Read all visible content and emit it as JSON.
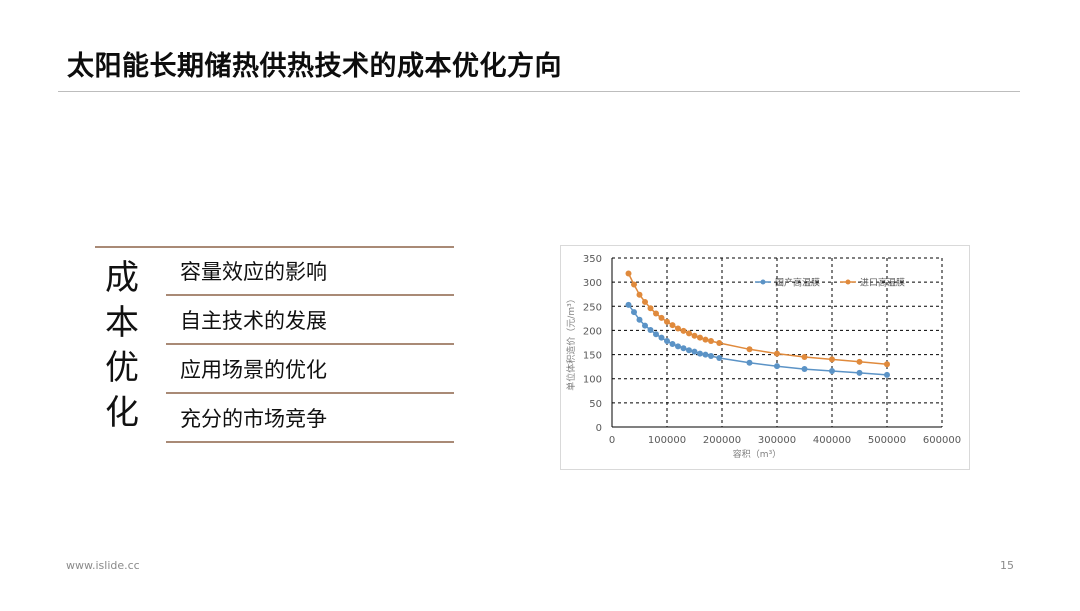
{
  "slide": {
    "title": "太阳能长期储热供热技术的成本优化方向",
    "side_label": "成本优化",
    "items": [
      "容量效应的影响",
      "自主技术的发展",
      "应用场景的优化",
      "充分的市场竞争"
    ],
    "footer_site": "www.islide.cc",
    "page_number": "15"
  },
  "colors": {
    "rule": "#a98a76",
    "series_domestic": "#5b93c6",
    "series_imported": "#e08a3c"
  },
  "chart_data": {
    "type": "scatter",
    "xlabel": "容积（m³）",
    "ylabel": "单位体积造价（元/m³）",
    "xlim": [
      0,
      600000
    ],
    "ylim": [
      0,
      350
    ],
    "xticks": [
      "0",
      "100000",
      "200000",
      "300000",
      "400000",
      "500000",
      "600000"
    ],
    "yticks": [
      "0",
      "50",
      "100",
      "150",
      "200",
      "250",
      "300",
      "350"
    ],
    "grid": true,
    "legend_position": "top-right",
    "series": [
      {
        "name": "国产高温膜",
        "color": "#5b93c6",
        "points": [
          [
            30000,
            253
          ],
          [
            40000,
            238
          ],
          [
            50000,
            222
          ],
          [
            60000,
            210
          ],
          [
            70000,
            201
          ],
          [
            80000,
            192
          ],
          [
            90000,
            185
          ],
          [
            100000,
            178
          ],
          [
            110000,
            172
          ],
          [
            120000,
            167
          ],
          [
            130000,
            163
          ],
          [
            140000,
            159
          ],
          [
            150000,
            156
          ],
          [
            160000,
            152
          ],
          [
            170000,
            150
          ],
          [
            180000,
            147
          ],
          [
            195000,
            143
          ],
          [
            250000,
            133
          ],
          [
            300000,
            126
          ],
          [
            350000,
            120
          ],
          [
            400000,
            116
          ],
          [
            450000,
            112
          ],
          [
            500000,
            108
          ]
        ]
      },
      {
        "name": "进口高温膜",
        "color": "#e08a3c",
        "points": [
          [
            30000,
            318
          ],
          [
            40000,
            295
          ],
          [
            50000,
            274
          ],
          [
            60000,
            259
          ],
          [
            70000,
            246
          ],
          [
            80000,
            235
          ],
          [
            90000,
            226
          ],
          [
            100000,
            218
          ],
          [
            110000,
            211
          ],
          [
            120000,
            204
          ],
          [
            130000,
            199
          ],
          [
            140000,
            194
          ],
          [
            150000,
            189
          ],
          [
            160000,
            185
          ],
          [
            170000,
            181
          ],
          [
            180000,
            178
          ],
          [
            195000,
            174
          ],
          [
            250000,
            161
          ],
          [
            300000,
            152
          ],
          [
            350000,
            145
          ],
          [
            400000,
            140
          ],
          [
            450000,
            135
          ],
          [
            500000,
            130
          ]
        ]
      }
    ]
  }
}
